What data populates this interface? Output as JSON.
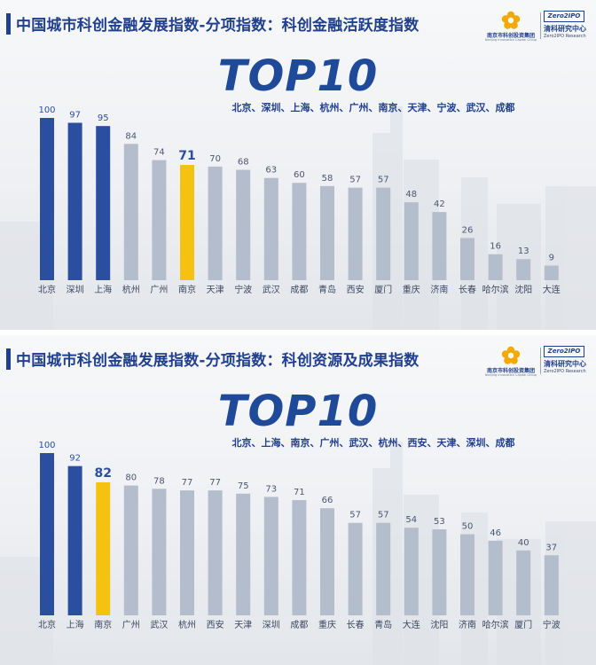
{
  "panels": [
    {
      "title": "中国城市科创金融发展指数-分项指数：科创金融活跃度指数",
      "big_text": "TOP10",
      "top10_cities": "北京、深圳、上海、杭州、广州、南京、天津、宁波、武汉、成都",
      "logo_left": {
        "name": "南京市科创投资集团",
        "sub": "Nanjing Innovation Capital Group"
      },
      "logo_right": {
        "box": "Zero2IPO",
        "name": "清科研究中心",
        "sub": "Zero2IPO Research"
      }
    },
    {
      "title": "中国城市科创金融发展指数-分项指数：科创资源及成果指数",
      "big_text": "TOP10",
      "top10_cities": "北京、上海、南京、广州、武汉、杭州、西安、天津、深圳、成都",
      "logo_left": {
        "name": "南京市科创投资集团",
        "sub": "Nanjing Innovation Capital Group"
      },
      "logo_right": {
        "box": "Zero2IPO",
        "name": "清科研究中心",
        "sub": "Zero2IPO Research"
      }
    }
  ],
  "colors": {
    "top3": "#2b4fa0",
    "nanjing": "#f5c211",
    "other": "#b4bdcc",
    "label_top": "#2b4fa0",
    "label_other": "#4a5670"
  },
  "chart_data": [
    {
      "type": "bar",
      "title": "中国城市科创金融发展指数-分项指数：科创金融活跃度指数",
      "categories": [
        "北京",
        "深圳",
        "上海",
        "杭州",
        "广州",
        "南京",
        "天津",
        "宁波",
        "武汉",
        "成都",
        "青岛",
        "西安",
        "厦门",
        "重庆",
        "济南",
        "长春",
        "哈尔滨",
        "沈阳",
        "大连"
      ],
      "values": [
        100,
        97,
        95,
        84,
        74,
        71,
        70,
        68,
        63,
        60,
        58,
        57,
        57,
        48,
        42,
        26,
        16,
        13,
        9
      ],
      "highlight": {
        "top3": [
          0,
          1,
          2
        ],
        "nanjing": 5
      },
      "ylim": [
        0,
        100
      ],
      "grid": false,
      "legend": "none"
    },
    {
      "type": "bar",
      "title": "中国城市科创金融发展指数-分项指数：科创资源及成果指数",
      "categories": [
        "北京",
        "上海",
        "南京",
        "广州",
        "武汉",
        "杭州",
        "西安",
        "天津",
        "深圳",
        "成都",
        "重庆",
        "长春",
        "青岛",
        "大连",
        "沈阳",
        "济南",
        "哈尔滨",
        "厦门",
        "宁波"
      ],
      "values": [
        100,
        92,
        82,
        80,
        78,
        77,
        77,
        75,
        73,
        71,
        66,
        57,
        57,
        54,
        53,
        50,
        46,
        40,
        37
      ],
      "highlight": {
        "top3": [
          0,
          1
        ],
        "nanjing": 2
      },
      "ylim": [
        0,
        100
      ],
      "grid": false,
      "legend": "none"
    }
  ]
}
